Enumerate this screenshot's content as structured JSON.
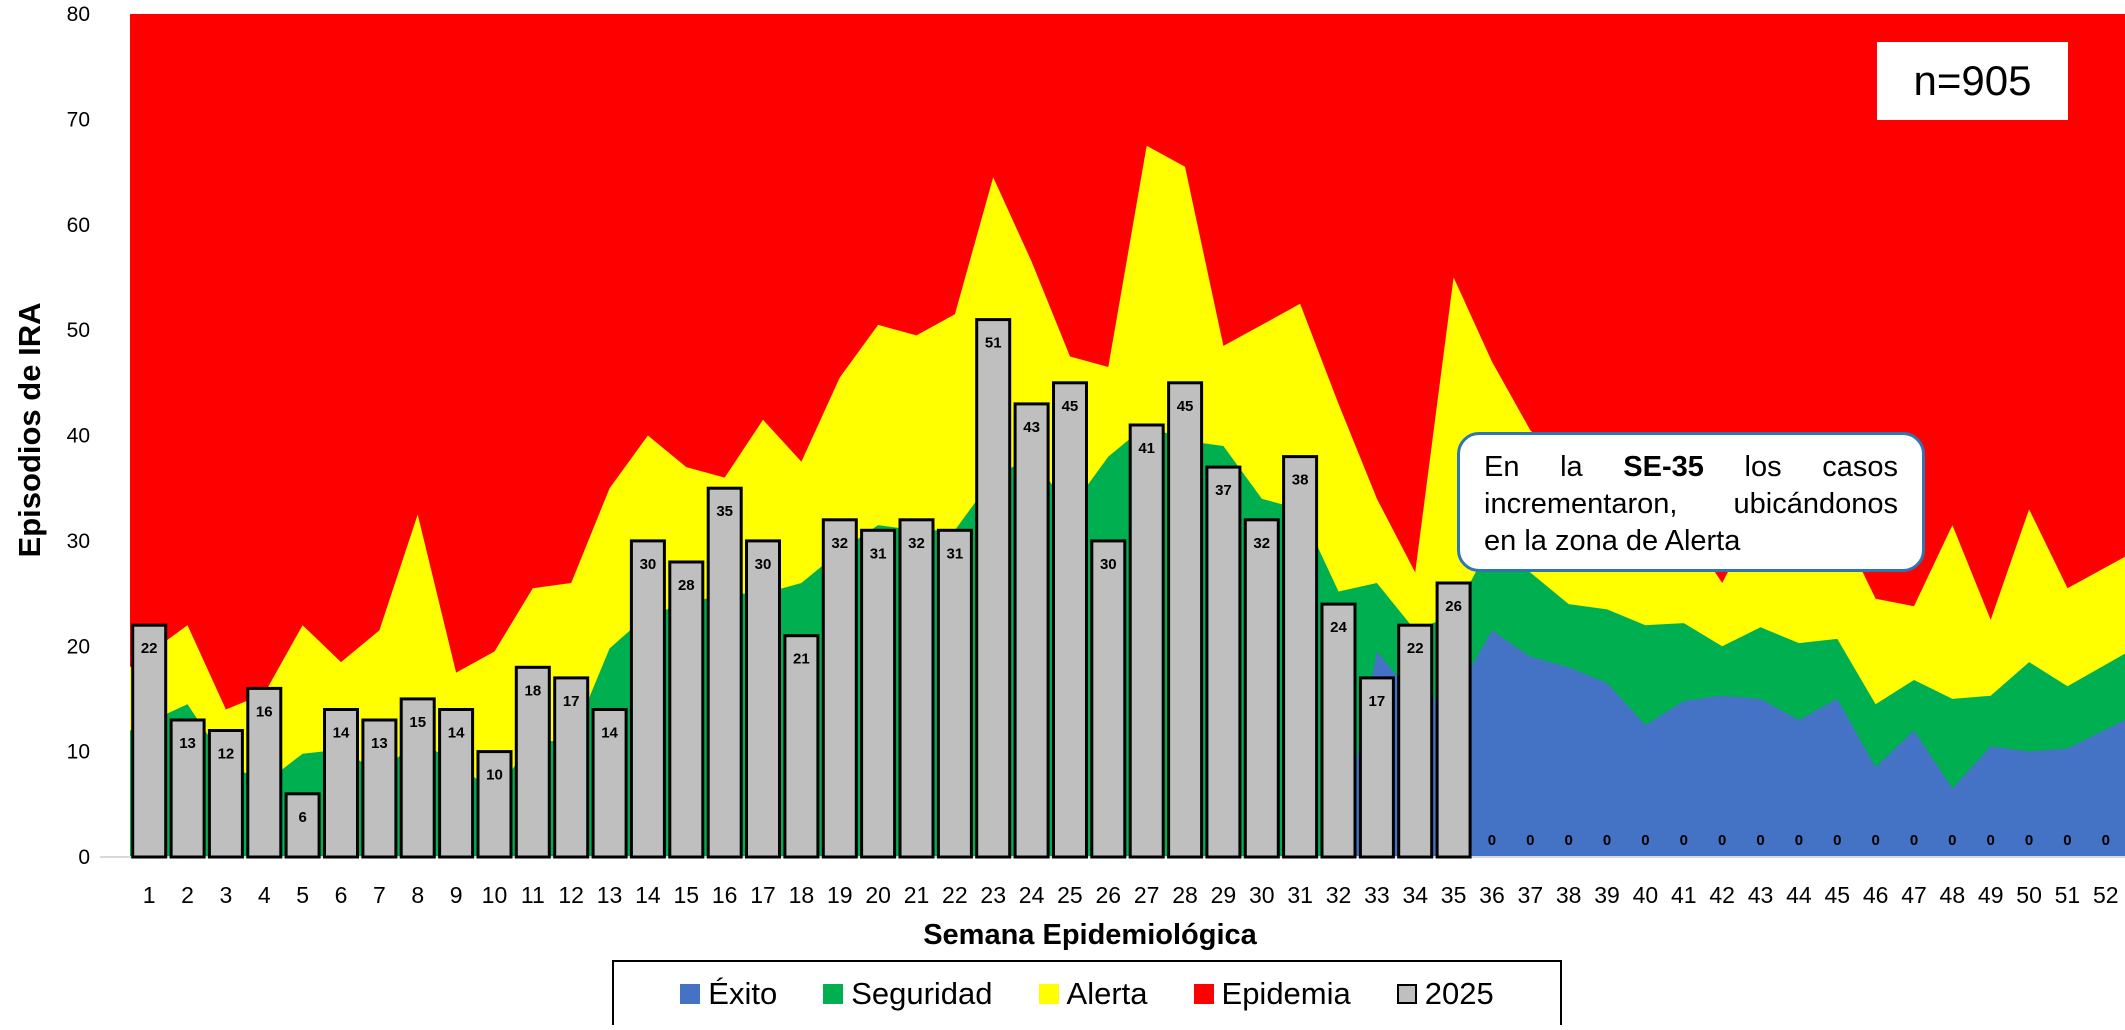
{
  "chart_data": {
    "type": "area",
    "xlabel": "Semana Epidemiológica",
    "ylabel": "Episodios de IRA",
    "ylim": [
      0,
      80
    ],
    "y_ticks": [
      0,
      10,
      20,
      30,
      40,
      50,
      60,
      70,
      80
    ],
    "categories": [
      1,
      2,
      3,
      4,
      5,
      6,
      7,
      8,
      9,
      10,
      11,
      12,
      13,
      14,
      15,
      16,
      17,
      18,
      19,
      20,
      21,
      22,
      23,
      24,
      25,
      26,
      27,
      28,
      29,
      30,
      31,
      32,
      33,
      34,
      35,
      36,
      37,
      38,
      39,
      40,
      41,
      42,
      43,
      44,
      45,
      46,
      47,
      48,
      49,
      50,
      51,
      52
    ],
    "n_label": "n=905",
    "bars_series_name": "2025",
    "bars": [
      22,
      13,
      12,
      16,
      6,
      14,
      13,
      15,
      14,
      10,
      18,
      17,
      14,
      30,
      28,
      35,
      30,
      21,
      32,
      31,
      32,
      31,
      51,
      43,
      45,
      30,
      41,
      45,
      37,
      32,
      38,
      24,
      17,
      22,
      26,
      0,
      0,
      0,
      0,
      0,
      0,
      0,
      0,
      0,
      0,
      0,
      0,
      0,
      0,
      0,
      0,
      0
    ],
    "zones": [
      {
        "name": "Éxito",
        "color": "#4472c4",
        "values": [
          0,
          0,
          0,
          0,
          0,
          0,
          0,
          0,
          0,
          0,
          0,
          0,
          0,
          0,
          0,
          0,
          0,
          0,
          0,
          0,
          0,
          0,
          0,
          0,
          0,
          0,
          0,
          0,
          0,
          0,
          0,
          0,
          19.5,
          15,
          15,
          21.5,
          19,
          18,
          16.5,
          12.5,
          14.8,
          15.3,
          15,
          13,
          15,
          8.5,
          12,
          6.5,
          10.5,
          10,
          10.3,
          13
        ]
      },
      {
        "name": "Seguridad",
        "color": "#00b050",
        "values": [
          12,
          14.5,
          9,
          7,
          9.8,
          10.2,
          8,
          11,
          9,
          6,
          11,
          11,
          19.8,
          23,
          24,
          25,
          25,
          26,
          29,
          31.5,
          31,
          31,
          36,
          38,
          33,
          38,
          41,
          39.5,
          39,
          34,
          33,
          25.2,
          26,
          21.5,
          23,
          30,
          27,
          24,
          23.5,
          22,
          22.2,
          20,
          21.8,
          20.3,
          20.7,
          14.5,
          16.8,
          15,
          15.3,
          18.5,
          16.2,
          19.3
        ]
      },
      {
        "name": "Alerta",
        "color": "#ffff00",
        "values": [
          18,
          22,
          14,
          15.5,
          22,
          18.5,
          21.5,
          32.5,
          17.5,
          19.5,
          25.5,
          26,
          35,
          40,
          37,
          36,
          41.5,
          37.5,
          45.5,
          50.5,
          49.5,
          51.5,
          64.5,
          56.5,
          47.5,
          46.5,
          67.5,
          65.5,
          48.5,
          50.5,
          52.5,
          43,
          34,
          27,
          55,
          47,
          40.5,
          36.8,
          34,
          32.5,
          31.5,
          26,
          33,
          31.5,
          32,
          24.5,
          23.8,
          31.5,
          22.5,
          33,
          25.5,
          28.5
        ]
      },
      {
        "name": "Epidemia",
        "color": "#ff0000",
        "values": [
          80,
          80,
          80,
          80,
          80,
          80,
          80,
          80,
          80,
          80,
          80,
          80,
          80,
          80,
          80,
          80,
          80,
          80,
          80,
          80,
          80,
          80,
          80,
          80,
          80,
          80,
          80,
          80,
          80,
          80,
          80,
          80,
          80,
          80,
          80,
          80,
          80,
          80,
          80,
          80,
          80,
          80,
          80,
          80,
          80,
          80,
          80,
          80,
          80,
          80,
          80,
          80
        ]
      }
    ],
    "bar_color": "#bfbfbf",
    "legend_placement": "bottom-center"
  },
  "annotation": {
    "p1": "En",
    "p2": "la",
    "p3": "SE-35",
    "p4": "los",
    "p5": "casos",
    "line2_left": "incrementaron,",
    "line2_right": "ubicándonos",
    "line3": "en la zona de Alerta"
  },
  "legend": [
    {
      "label": "Éxito",
      "color": "#4472c4"
    },
    {
      "label": "Seguridad",
      "color": "#00b050"
    },
    {
      "label": "Alerta",
      "color": "#ffff00"
    },
    {
      "label": "Epidemia",
      "color": "#ff0000"
    },
    {
      "label": "2025",
      "color": "#bfbfbf"
    }
  ]
}
